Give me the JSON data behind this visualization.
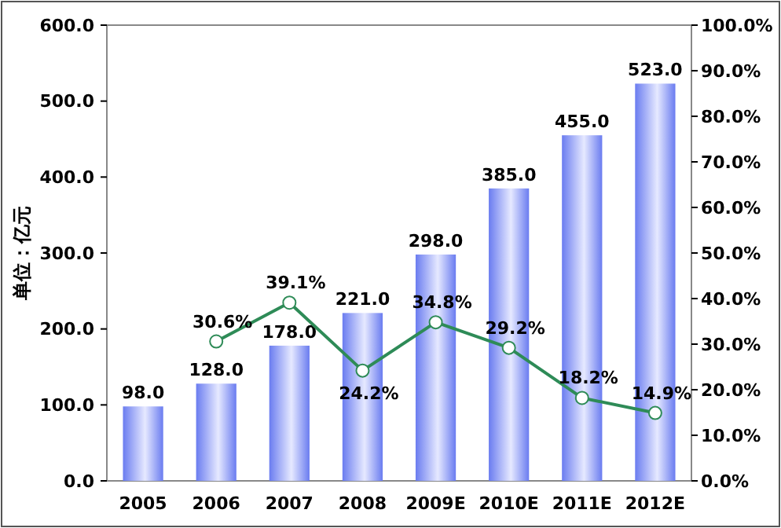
{
  "chart_data": {
    "type": "bar",
    "ylabel": "单位：亿元",
    "categories": [
      "2005",
      "2006",
      "2007",
      "2008",
      "2009E",
      "2010E",
      "2011E",
      "2012E"
    ],
    "series": [
      {
        "color": "#6a7cf0",
        "values": [
          98,
          128,
          178,
          221,
          298,
          385,
          455,
          523
        ],
        "value_labels": [
          "98.0",
          "128.0",
          "178.0",
          "221.0",
          "298.0",
          "385.0",
          "455.0",
          "523.0"
        ]
      },
      {
        "type": "line",
        "axis": "y2",
        "color": "#2e8b57",
        "marker": "circle",
        "values": [
          null,
          30.6,
          39.1,
          24.2,
          34.8,
          29.2,
          18.2,
          14.9
        ],
        "value_labels": [
          null,
          "30.6%",
          "39.1%",
          "24.2%",
          "34.8%",
          "29.2%",
          "18.2%",
          "14.9%"
        ]
      }
    ],
    "ylim": [
      0,
      600
    ],
    "yticks": [
      {
        "value": 0,
        "label": "0.0"
      },
      {
        "value": 100,
        "label": "100.0"
      },
      {
        "value": 200,
        "label": "200.0"
      },
      {
        "value": 300,
        "label": "300.0"
      },
      {
        "value": 400,
        "label": "400.0"
      },
      {
        "value": 500,
        "label": "500.0"
      },
      {
        "value": 600,
        "label": "600.0"
      }
    ],
    "y2lim": [
      0,
      100
    ],
    "y2ticks": [
      {
        "value": 0,
        "label": "0.0%"
      },
      {
        "value": 10,
        "label": "10.0%"
      },
      {
        "value": 20,
        "label": "20.0%"
      },
      {
        "value": 30,
        "label": "30.0%"
      },
      {
        "value": 40,
        "label": "40.0%"
      },
      {
        "value": 50,
        "label": "50.0%"
      },
      {
        "value": 60,
        "label": "60.0%"
      },
      {
        "value": 70,
        "label": "70.0%"
      },
      {
        "value": 80,
        "label": "80.0%"
      },
      {
        "value": 90,
        "label": "90.0%"
      },
      {
        "value": 100,
        "label": "100.0%"
      }
    ],
    "grid": false
  }
}
